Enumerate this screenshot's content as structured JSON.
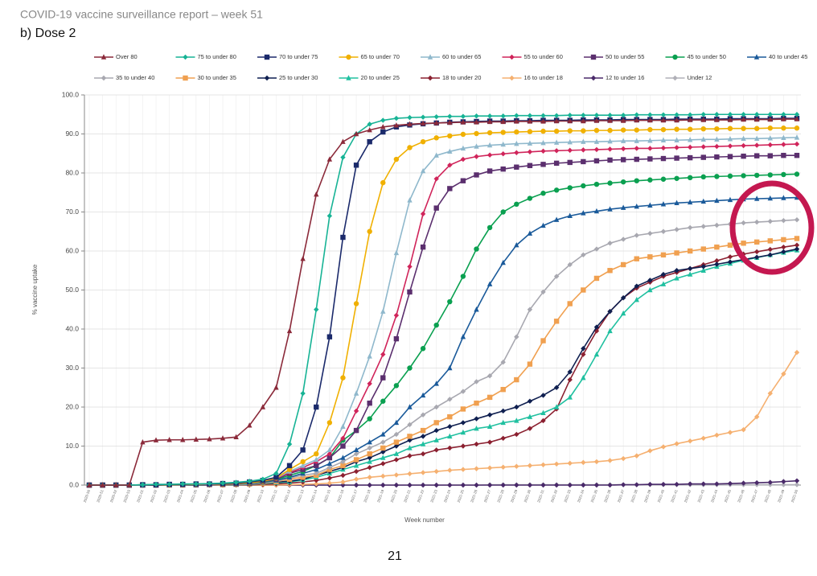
{
  "header": {
    "title": "COVID-19 vaccine surveillance report – week 51",
    "subtitle": "b) Dose 2"
  },
  "page_number": "21",
  "chart_data": {
    "type": "line",
    "ylabel": "% vaccine uptake",
    "xlabel": "Week number",
    "ylim": [
      0,
      100
    ],
    "yticks": [
      {
        "value": 0,
        "label": "0.0"
      },
      {
        "value": 10,
        "label": "10.0"
      },
      {
        "value": 20,
        "label": "20.0"
      },
      {
        "value": 30,
        "label": "30.0"
      },
      {
        "value": 40,
        "label": "40.0"
      },
      {
        "value": 50,
        "label": "50.0"
      },
      {
        "value": 60,
        "label": "60.0"
      },
      {
        "value": 70,
        "label": "70.0"
      },
      {
        "value": 80,
        "label": "80.0"
      },
      {
        "value": 90,
        "label": "90.0"
      },
      {
        "value": 100,
        "label": "100.0"
      }
    ],
    "grid": true,
    "legend": "top",
    "categories": [
      "2020-50",
      "2020-51",
      "2020-52",
      "2020-53",
      "2021-01",
      "2021-02",
      "2021-03",
      "2021-04",
      "2021-05",
      "2021-06",
      "2021-07",
      "2021-08",
      "2021-09",
      "2021-10",
      "2021-11",
      "2021-12",
      "2021-13",
      "2021-14",
      "2021-15",
      "2021-16",
      "2021-17",
      "2021-18",
      "2021-19",
      "2021-20",
      "2021-21",
      "2021-22",
      "2021-23",
      "2021-24",
      "2021-25",
      "2021-26",
      "2021-27",
      "2021-28",
      "2021-29",
      "2021-30",
      "2021-31",
      "2021-32",
      "2021-33",
      "2021-34",
      "2021-35",
      "2021-36",
      "2021-37",
      "2021-38",
      "2021-39",
      "2021-40",
      "2021-41",
      "2021-42",
      "2021-43",
      "2021-44",
      "2021-45",
      "2021-46",
      "2021-47",
      "2021-48",
      "2021-49",
      "2021-50"
    ],
    "series": [
      {
        "name": "Over 80",
        "color": "#8b2a3a",
        "marker": "triangle",
        "values": [
          0,
          0,
          0,
          0,
          11,
          11.5,
          11.6,
          11.6,
          11.7,
          11.8,
          12,
          12.3,
          15.3,
          20,
          25,
          39.5,
          58,
          74.5,
          83.5,
          88,
          90,
          91,
          91.8,
          92.2,
          92.5,
          92.7,
          92.8,
          92.9,
          93,
          93,
          93.1,
          93.1,
          93.2,
          93.2,
          93.2,
          93.3,
          93.3,
          93.3,
          93.4,
          93.4,
          93.4,
          93.5,
          93.5,
          93.5,
          93.5,
          93.6,
          93.6,
          93.6,
          93.6,
          93.7,
          93.7,
          93.7,
          93.8,
          93.8
        ]
      },
      {
        "name": "75 to under 80",
        "color": "#17b395",
        "marker": "diamond",
        "values": [
          0,
          0,
          0,
          0,
          0.1,
          0.2,
          0.2,
          0.3,
          0.3,
          0.4,
          0.5,
          0.7,
          1,
          1.5,
          3,
          10.5,
          23.5,
          45,
          69,
          84,
          90,
          92.5,
          93.5,
          94,
          94.2,
          94.3,
          94.4,
          94.5,
          94.5,
          94.6,
          94.6,
          94.6,
          94.7,
          94.7,
          94.7,
          94.7,
          94.8,
          94.8,
          94.8,
          94.8,
          94.8,
          94.9,
          94.9,
          94.9,
          94.9,
          94.9,
          95,
          95,
          95,
          95,
          95,
          95,
          95,
          95
        ]
      },
      {
        "name": "70 to under 75",
        "color": "#1b2a6b",
        "marker": "square",
        "values": [
          0,
          0,
          0,
          0,
          0.1,
          0.1,
          0.2,
          0.2,
          0.3,
          0.3,
          0.4,
          0.5,
          0.8,
          1.2,
          2,
          5,
          9,
          20,
          38,
          63.5,
          82,
          88,
          90.5,
          91.8,
          92.3,
          92.6,
          92.8,
          93,
          93.1,
          93.2,
          93.3,
          93.3,
          93.4,
          93.4,
          93.5,
          93.5,
          93.5,
          93.6,
          93.6,
          93.6,
          93.7,
          93.7,
          93.7,
          93.7,
          93.8,
          93.8,
          93.8,
          93.8,
          93.9,
          93.9,
          93.9,
          93.9,
          94,
          94
        ]
      },
      {
        "name": "65 to under 70",
        "color": "#f0b000",
        "marker": "circle",
        "values": [
          0,
          0,
          0,
          0,
          0.1,
          0.1,
          0.1,
          0.2,
          0.2,
          0.3,
          0.3,
          0.4,
          0.6,
          1,
          1.8,
          4,
          6,
          8,
          16,
          27.5,
          46.5,
          65,
          77.5,
          83.5,
          86.5,
          88,
          89,
          89.5,
          89.9,
          90.1,
          90.3,
          90.4,
          90.5,
          90.6,
          90.7,
          90.7,
          90.8,
          90.8,
          90.9,
          90.9,
          91,
          91,
          91.1,
          91.1,
          91.2,
          91.2,
          91.3,
          91.3,
          91.4,
          91.4,
          91.4,
          91.5,
          91.5,
          91.5
        ]
      },
      {
        "name": "60 to under 65",
        "color": "#8fb8cc",
        "marker": "triangle",
        "values": [
          0,
          0,
          0,
          0,
          0,
          0.1,
          0.1,
          0.1,
          0.2,
          0.2,
          0.3,
          0.4,
          0.6,
          1,
          1.8,
          3.5,
          5,
          6.5,
          9,
          15,
          23.5,
          33,
          44.5,
          59.5,
          73,
          80.5,
          84.5,
          85.5,
          86.3,
          86.8,
          87.1,
          87.3,
          87.5,
          87.6,
          87.7,
          87.8,
          87.9,
          88,
          88,
          88.1,
          88.2,
          88.2,
          88.3,
          88.4,
          88.4,
          88.5,
          88.6,
          88.6,
          88.7,
          88.8,
          88.8,
          88.9,
          89,
          89.1
        ]
      },
      {
        "name": "55 to under 60",
        "color": "#d0245a",
        "marker": "diamond",
        "values": [
          0,
          0,
          0,
          0,
          0,
          0.1,
          0.1,
          0.1,
          0.2,
          0.2,
          0.3,
          0.4,
          0.6,
          1,
          1.7,
          3.2,
          4.5,
          6,
          8,
          12,
          19,
          26,
          33.5,
          43.5,
          56,
          69.5,
          78.5,
          82,
          83.5,
          84.2,
          84.6,
          84.9,
          85.2,
          85.4,
          85.6,
          85.7,
          85.8,
          85.9,
          86,
          86.1,
          86.2,
          86.3,
          86.3,
          86.4,
          86.5,
          86.6,
          86.7,
          86.8,
          86.9,
          87,
          87.1,
          87.2,
          87.3,
          87.4
        ]
      },
      {
        "name": "50 to under 55",
        "color": "#5b2f6e",
        "marker": "square",
        "values": [
          0,
          0,
          0,
          0,
          0,
          0,
          0.1,
          0.1,
          0.1,
          0.2,
          0.2,
          0.3,
          0.5,
          0.9,
          1.5,
          3,
          4,
          5,
          7,
          10,
          14,
          21,
          27.5,
          37.5,
          49.5,
          61,
          71,
          76,
          78,
          79.5,
          80.5,
          81,
          81.5,
          81.9,
          82.2,
          82.5,
          82.7,
          82.9,
          83.1,
          83.3,
          83.4,
          83.5,
          83.6,
          83.7,
          83.8,
          83.9,
          84,
          84.1,
          84.2,
          84.3,
          84.4,
          84.4,
          84.5,
          84.5
        ]
      },
      {
        "name": "45 to under 50",
        "color": "#0aa050",
        "marker": "circle",
        "values": [
          0,
          0,
          0,
          0,
          0,
          0,
          0.1,
          0.1,
          0.1,
          0.2,
          0.2,
          0.3,
          0.5,
          0.8,
          1.4,
          2.5,
          3.5,
          5,
          7,
          11.5,
          14,
          17,
          21.5,
          25.5,
          30,
          35,
          41,
          47,
          53.5,
          60.5,
          66,
          70,
          72,
          73.5,
          74.8,
          75.6,
          76.2,
          76.7,
          77.1,
          77.4,
          77.7,
          78,
          78.2,
          78.4,
          78.6,
          78.8,
          79,
          79.1,
          79.2,
          79.3,
          79.4,
          79.5,
          79.6,
          79.7
        ]
      },
      {
        "name": "40 to under 45",
        "color": "#1a5a9a",
        "marker": "triangle",
        "values": [
          0,
          0,
          0,
          0,
          0,
          0,
          0,
          0.1,
          0.1,
          0.1,
          0.2,
          0.3,
          0.4,
          0.7,
          1.2,
          2,
          3,
          4,
          5.5,
          7,
          9,
          11,
          13,
          16,
          20,
          23,
          26,
          30,
          38,
          45,
          51.5,
          57,
          61.5,
          64.5,
          66.5,
          68,
          69,
          69.7,
          70.2,
          70.7,
          71.1,
          71.4,
          71.7,
          72,
          72.3,
          72.5,
          72.7,
          72.9,
          73.1,
          73.3,
          73.4,
          73.5,
          73.6,
          73.7
        ]
      },
      {
        "name": "35 to under 40",
        "color": "#a8a8b0",
        "marker": "diamond",
        "values": [
          0,
          0,
          0,
          0,
          0,
          0,
          0,
          0.1,
          0.1,
          0.1,
          0.2,
          0.2,
          0.3,
          0.6,
          1,
          1.8,
          2.5,
          3,
          4.5,
          6,
          8,
          9.5,
          11,
          13,
          15.5,
          18,
          20,
          22,
          24,
          26.5,
          28,
          31.5,
          38,
          45,
          49.5,
          53.5,
          56.5,
          59,
          60.5,
          62,
          63,
          64,
          64.5,
          65,
          65.5,
          66,
          66.3,
          66.6,
          66.9,
          67.2,
          67.4,
          67.6,
          67.8,
          68
        ]
      },
      {
        "name": "30 to under 35",
        "color": "#f0a050",
        "marker": "square",
        "values": [
          0,
          0,
          0,
          0,
          0,
          0,
          0,
          0,
          0.1,
          0.1,
          0.1,
          0.2,
          0.3,
          0.5,
          0.9,
          1.5,
          2,
          2.5,
          4,
          5,
          6.5,
          8,
          9.5,
          11,
          12.5,
          14,
          16,
          17.5,
          19.5,
          21,
          22.5,
          24.5,
          27,
          31,
          37,
          42,
          46.5,
          50,
          53,
          55,
          56.5,
          58,
          58.5,
          59,
          59.5,
          60,
          60.5,
          61,
          61.5,
          62,
          62.3,
          62.6,
          62.9,
          63.2
        ]
      },
      {
        "name": "25 to under 30",
        "color": "#0f1f50",
        "marker": "diamond",
        "values": [
          0,
          0,
          0,
          0,
          0,
          0,
          0,
          0,
          0.1,
          0.1,
          0.1,
          0.2,
          0.3,
          0.5,
          0.8,
          1,
          1.5,
          2.5,
          3.5,
          4.5,
          6,
          7,
          8.5,
          10,
          11.5,
          12.5,
          14,
          15,
          16,
          17,
          18,
          19,
          20,
          21.5,
          23,
          25,
          29,
          35,
          40.5,
          44.5,
          48,
          51,
          52.5,
          54,
          55,
          55.5,
          56,
          56.6,
          57.2,
          57.8,
          58.4,
          59,
          59.8,
          60.5
        ]
      },
      {
        "name": "20 to under 25",
        "color": "#20c0a0",
        "marker": "triangle",
        "values": [
          0,
          0,
          0,
          0,
          0,
          0,
          0,
          0,
          0,
          0.1,
          0.1,
          0.1,
          0.2,
          0.4,
          0.6,
          0.8,
          1.3,
          2,
          3,
          4,
          5,
          6,
          7,
          8,
          9.5,
          10.5,
          11.5,
          12.5,
          13.5,
          14.5,
          15,
          16,
          16.5,
          17.5,
          18.5,
          20,
          22.5,
          27.5,
          33.5,
          39.5,
          44,
          47.5,
          50,
          51.5,
          53,
          54,
          55,
          56,
          56.8,
          57.6,
          58.3,
          59,
          59.6,
          60.2
        ]
      },
      {
        "name": "18 to under 20",
        "color": "#8b2030",
        "marker": "diamond",
        "values": [
          0,
          0,
          0,
          0,
          0,
          0,
          0,
          0,
          0,
          0,
          0.1,
          0.1,
          0.1,
          0.2,
          0.3,
          0.5,
          0.8,
          1.2,
          1.8,
          2.5,
          3.5,
          4.5,
          5.5,
          6.5,
          7.5,
          8,
          9,
          9.5,
          10,
          10.5,
          11,
          12,
          13,
          14.5,
          16.5,
          19.5,
          27,
          33.5,
          39.5,
          44.5,
          48,
          50.5,
          52,
          53.5,
          54.5,
          55.5,
          56.5,
          57.5,
          58.5,
          59.2,
          59.8,
          60.4,
          61,
          61.5
        ]
      },
      {
        "name": "16 to under 18",
        "color": "#f5b070",
        "marker": "diamond",
        "values": [
          0,
          0,
          0,
          0,
          0,
          0,
          0,
          0,
          0,
          0,
          0,
          0,
          0,
          0,
          0,
          0.1,
          0.2,
          0.3,
          0.5,
          0.8,
          1.5,
          2,
          2.3,
          2.6,
          2.9,
          3.2,
          3.5,
          3.8,
          4,
          4.2,
          4.4,
          4.6,
          4.8,
          5,
          5.2,
          5.4,
          5.6,
          5.8,
          6,
          6.3,
          6.8,
          7.5,
          8.8,
          9.8,
          10.6,
          11.3,
          12,
          12.8,
          13.5,
          14.2,
          17.5,
          23.5,
          28.5,
          34
        ]
      },
      {
        "name": "12 to under 16",
        "color": "#4a2a6a",
        "marker": "diamond",
        "values": [
          0,
          0,
          0,
          0,
          0,
          0,
          0,
          0,
          0,
          0,
          0,
          0,
          0,
          0,
          0,
          0,
          0,
          0,
          0,
          0,
          0,
          0,
          0,
          0,
          0,
          0,
          0,
          0,
          0,
          0,
          0,
          0,
          0,
          0,
          0,
          0,
          0,
          0,
          0,
          0,
          0.1,
          0.1,
          0.2,
          0.2,
          0.2,
          0.3,
          0.3,
          0.3,
          0.4,
          0.5,
          0.6,
          0.7,
          0.9,
          1.1
        ]
      },
      {
        "name": "Under 12",
        "color": "#b0b0b8",
        "marker": "diamond",
        "values": [
          0,
          0,
          0,
          0,
          0,
          0,
          0,
          0,
          0,
          0,
          0,
          0,
          0,
          0,
          0,
          0,
          0,
          0,
          0,
          0,
          0,
          0,
          0,
          0,
          0,
          0,
          0,
          0,
          0,
          0,
          0.1,
          0.1,
          0.1,
          0.1,
          0.1,
          0.1,
          0.1,
          0.1,
          0.1,
          0.1,
          0.1,
          0.1,
          0.1,
          0.1,
          0.1,
          0.1,
          0.1,
          0.1,
          0.1,
          0.1,
          0.1,
          0.1,
          0.1,
          0.1
        ]
      }
    ]
  }
}
